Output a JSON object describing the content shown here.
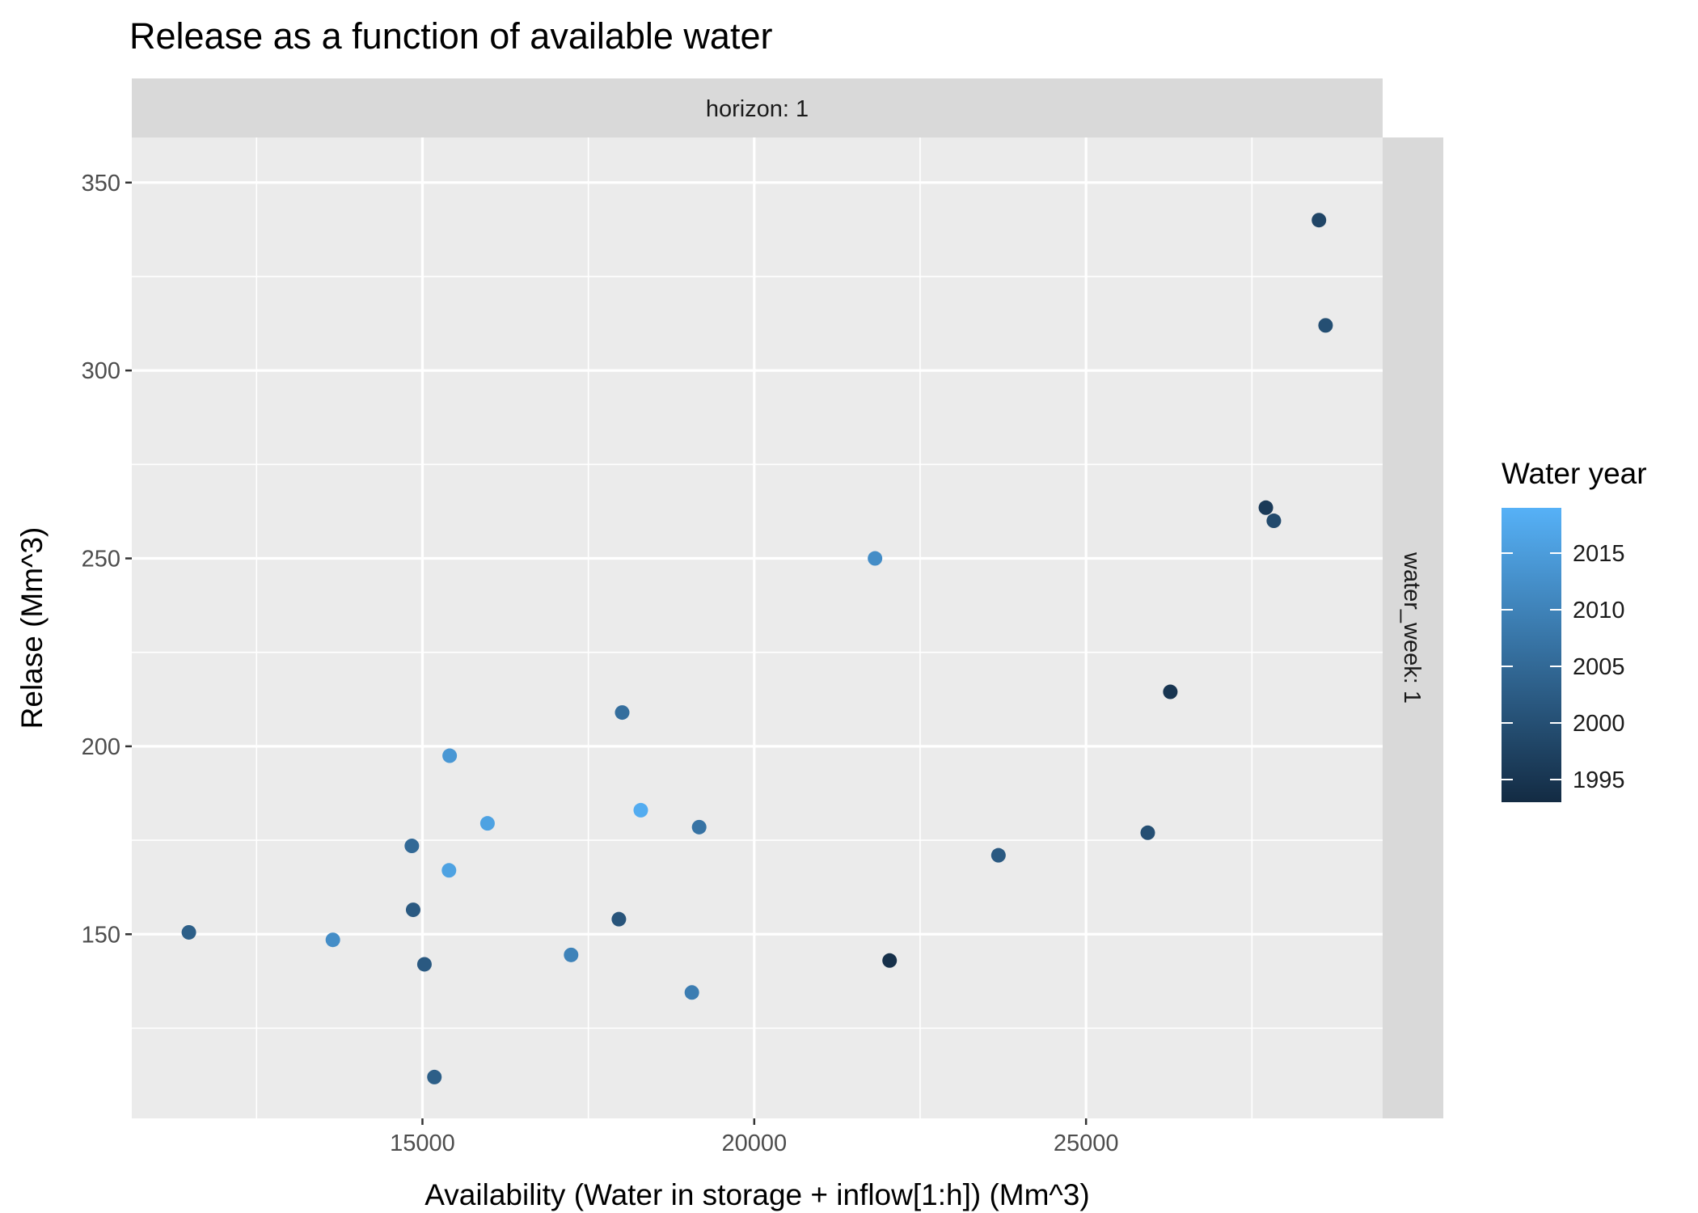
{
  "chart_data": {
    "type": "scatter",
    "title": "Release as a function of available water",
    "xlabel": "Availability (Water in storage + inflow[1:h]) (Mm^3)",
    "ylabel": "Relase (Mm^3)",
    "xlim": [
      10620,
      29470
    ],
    "ylim": [
      101,
      362
    ],
    "x_ticks": [
      15000,
      20000,
      25000
    ],
    "y_ticks": [
      150,
      200,
      250,
      300,
      350
    ],
    "x_tick_labels": [
      "15000",
      "20000",
      "25000"
    ],
    "y_tick_labels": [
      "150",
      "200",
      "250",
      "300",
      "350"
    ],
    "grid": true,
    "facet_top": "horizon: 1",
    "facet_right": "water_week: 1",
    "legend": {
      "title": "Water year",
      "position": "right",
      "range": [
        1993,
        2019
      ],
      "ticks": [
        1995,
        2000,
        2005,
        2010,
        2015
      ],
      "tick_labels": [
        "1995",
        "2000",
        "2005",
        "2010",
        "2015"
      ],
      "color_low": "#132B43",
      "color_high": "#56B1F7"
    },
    "points": [
      {
        "x": 28510,
        "y": 340,
        "year": 1998
      },
      {
        "x": 28610,
        "y": 312,
        "year": 2000
      },
      {
        "x": 27710,
        "y": 263.5,
        "year": 1996
      },
      {
        "x": 27830,
        "y": 260,
        "year": 1999
      },
      {
        "x": 21820,
        "y": 250,
        "year": 2012
      },
      {
        "x": 26270,
        "y": 214.5,
        "year": 1995
      },
      {
        "x": 18010,
        "y": 209,
        "year": 2006
      },
      {
        "x": 15410,
        "y": 197.5,
        "year": 2014
      },
      {
        "x": 18290,
        "y": 183,
        "year": 2018
      },
      {
        "x": 15980,
        "y": 179.5,
        "year": 2016
      },
      {
        "x": 19170,
        "y": 178.5,
        "year": 2007
      },
      {
        "x": 25930,
        "y": 177,
        "year": 2000
      },
      {
        "x": 14840,
        "y": 173.5,
        "year": 2005
      },
      {
        "x": 23680,
        "y": 171,
        "year": 2002
      },
      {
        "x": 15400,
        "y": 167,
        "year": 2016
      },
      {
        "x": 14860,
        "y": 156.5,
        "year": 2002
      },
      {
        "x": 17960,
        "y": 154,
        "year": 2001
      },
      {
        "x": 11480,
        "y": 150.5,
        "year": 2003
      },
      {
        "x": 13650,
        "y": 148.5,
        "year": 2012
      },
      {
        "x": 17240,
        "y": 144.5,
        "year": 2010
      },
      {
        "x": 22040,
        "y": 143,
        "year": 1994
      },
      {
        "x": 15030,
        "y": 142,
        "year": 2002
      },
      {
        "x": 19060,
        "y": 134.5,
        "year": 2009
      },
      {
        "x": 15180,
        "y": 112,
        "year": 2003
      }
    ]
  }
}
